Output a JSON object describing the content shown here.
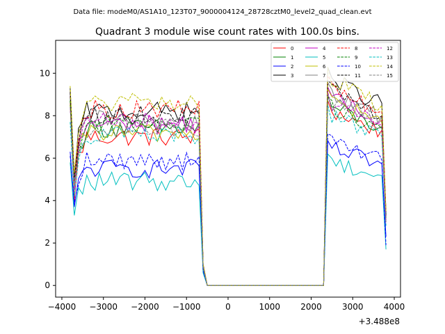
{
  "figure": {
    "suptitle": "Data file: modeM0/AS1A10_123T07_9000004124_28728cztM0_level2_quad_clean.evt"
  },
  "chart_data": {
    "type": "line",
    "title": "Quadrant 3 module wise count rates with 100.0s bins.",
    "xlabel": "",
    "ylabel": "",
    "x_offset_label": "+3.488e8",
    "xlim": [
      -4150,
      4150
    ],
    "ylim": [
      -0.55,
      11.55
    ],
    "xticks": [
      -4000,
      -3000,
      -2000,
      -1000,
      0,
      1000,
      2000,
      3000,
      4000
    ],
    "xtick_labels": [
      "−4000",
      "−3000",
      "−2000",
      "−1000",
      "0",
      "1000",
      "2000",
      "3000",
      "4000"
    ],
    "yticks": [
      0,
      2,
      4,
      6,
      8,
      10
    ],
    "ytick_labels": [
      "0",
      "2",
      "4",
      "6",
      "8",
      "10"
    ],
    "grid": false,
    "legend_position": "top-right",
    "legend_columns": 4,
    "x": [
      -3800,
      -3700,
      -3600,
      -3500,
      -3400,
      -3300,
      -3200,
      -3100,
      -3000,
      -2900,
      -2800,
      -2700,
      -2600,
      -2500,
      -2400,
      -2300,
      -2200,
      -2100,
      -2000,
      -1900,
      -1800,
      -1700,
      -1600,
      -1500,
      -1400,
      -1300,
      -1200,
      -1100,
      -1000,
      -900,
      -800,
      -700,
      -600,
      -500,
      -400,
      -300,
      -200,
      -100,
      0,
      100,
      200,
      300,
      400,
      500,
      600,
      700,
      800,
      900,
      1000,
      1100,
      1200,
      1300,
      1400,
      1500,
      1600,
      1700,
      1800,
      1900,
      2000,
      2100,
      2200,
      2300,
      2400,
      2500,
      2600,
      2700,
      2800,
      2900,
      3000,
      3100,
      3200,
      3300,
      3400,
      3500,
      3600,
      3700,
      3800
    ],
    "segment_levels": {
      "first_active": {
        "x_from": -3800,
        "x_to": -700
      },
      "gap": {
        "x_from": -500,
        "x_to": 2300
      },
      "second_active": {
        "x_from": 2400,
        "x_to": 3800
      }
    },
    "series": [
      {
        "name": "0",
        "color": "#ff0000",
        "dash": "solid",
        "level1": 7.0,
        "level2": 8.3,
        "first": 8.7,
        "dip": 4.0,
        "last": 3.0
      },
      {
        "name": "1",
        "color": "#008000",
        "dash": "solid",
        "level1": 7.4,
        "level2": 8.5,
        "first": 8.9,
        "dip": 4.8,
        "last": 3.2
      },
      {
        "name": "2",
        "color": "#0000ff",
        "dash": "solid",
        "level1": 5.5,
        "level2": 6.5,
        "first": 6.3,
        "dip": 3.7,
        "last": 2.3
      },
      {
        "name": "3",
        "color": "#000000",
        "dash": "solid",
        "level1": 8.2,
        "level2": 9.8,
        "first": 9.3,
        "dip": 5.0,
        "last": 3.4
      },
      {
        "name": "4",
        "color": "#c000c0",
        "dash": "solid",
        "level1": 7.6,
        "level2": 8.9,
        "first": 8.5,
        "dip": 4.5,
        "last": 3.0
      },
      {
        "name": "5",
        "color": "#00bfbf",
        "dash": "solid",
        "level1": 4.9,
        "level2": 5.9,
        "first": 5.8,
        "dip": 3.3,
        "last": 1.7
      },
      {
        "name": "6",
        "color": "#bfbf00",
        "dash": "solid",
        "level1": 7.2,
        "level2": 8.8,
        "first": 8.5,
        "dip": 4.7,
        "last": 3.1
      },
      {
        "name": "7",
        "color": "#808080",
        "dash": "solid",
        "level1": 7.8,
        "level2": 9.1,
        "first": 9.0,
        "dip": 5.0,
        "last": 3.2
      },
      {
        "name": "8",
        "color": "#ff0000",
        "dash": "dashed",
        "level1": 8.3,
        "level2": 9.4,
        "first": 9.1,
        "dip": 5.2,
        "last": 3.5
      },
      {
        "name": "9",
        "color": "#008000",
        "dash": "dashed",
        "level1": 7.6,
        "level2": 8.5,
        "first": 8.7,
        "dip": 4.9,
        "last": 3.1
      },
      {
        "name": "10",
        "color": "#0000ff",
        "dash": "dashed",
        "level1": 5.9,
        "level2": 6.8,
        "first": 6.1,
        "dip": 3.9,
        "last": 1.9
      },
      {
        "name": "11",
        "color": "#000000",
        "dash": "dashed",
        "level1": 8.0,
        "level2": 9.2,
        "first": 9.1,
        "dip": 5.1,
        "last": 3.3
      },
      {
        "name": "12",
        "color": "#c000c0",
        "dash": "dashed",
        "level1": 7.7,
        "level2": 8.7,
        "first": 8.4,
        "dip": 4.8,
        "last": 3.0
      },
      {
        "name": "13",
        "color": "#00bfbf",
        "dash": "dashed",
        "level1": 7.1,
        "level2": 8.1,
        "first": 7.7,
        "dip": 4.2,
        "last": 2.8
      },
      {
        "name": "14",
        "color": "#bfbf00",
        "dash": "dashed",
        "level1": 8.6,
        "level2": 9.8,
        "first": 9.4,
        "dip": 5.3,
        "last": 3.5
      },
      {
        "name": "15",
        "color": "#808080",
        "dash": "dashed",
        "level1": 7.4,
        "level2": 8.6,
        "first": 8.4,
        "dip": 4.7,
        "last": 2.9
      }
    ]
  }
}
